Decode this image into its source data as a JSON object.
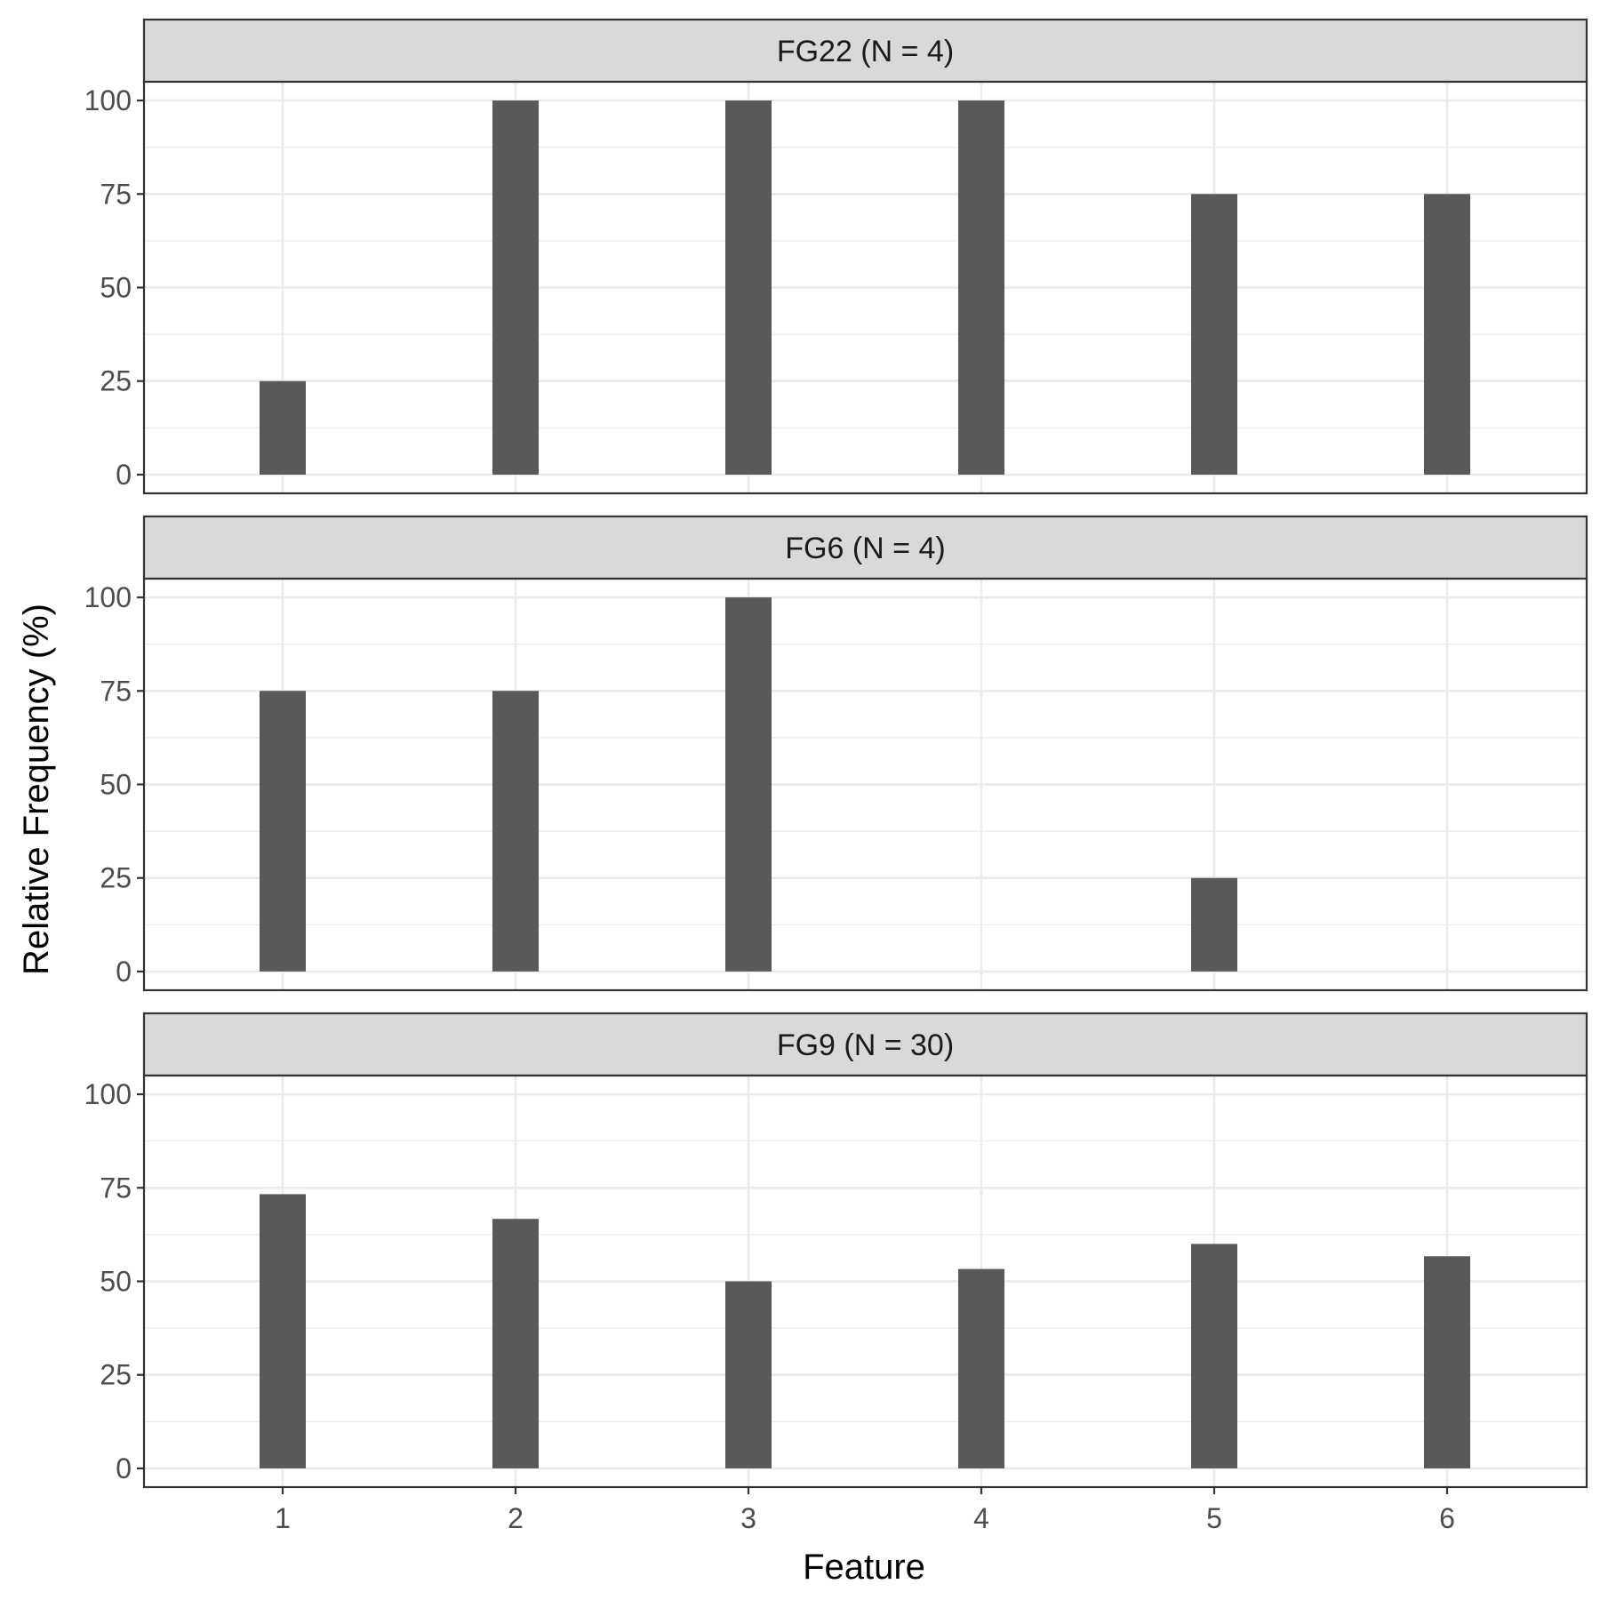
{
  "chart_data": {
    "type": "bar",
    "xlabel": "Feature",
    "ylabel": "Relative Frequency (%)",
    "categories": [
      "1",
      "2",
      "3",
      "4",
      "5",
      "6"
    ],
    "ylim": [
      0,
      100
    ],
    "yticks": [
      "0",
      "25",
      "50",
      "75",
      "100"
    ],
    "bar_color": "#595959",
    "grid": true,
    "panels": [
      {
        "title": "FG22 (N = 4)",
        "values": [
          25,
          100,
          100,
          100,
          75,
          75
        ]
      },
      {
        "title": "FG6 (N = 4)",
        "values": [
          75,
          75,
          100,
          0,
          25,
          0
        ]
      },
      {
        "title": "FG9 (N = 30)",
        "values": [
          73.3,
          66.7,
          50,
          53.3,
          60,
          56.7
        ]
      }
    ]
  }
}
